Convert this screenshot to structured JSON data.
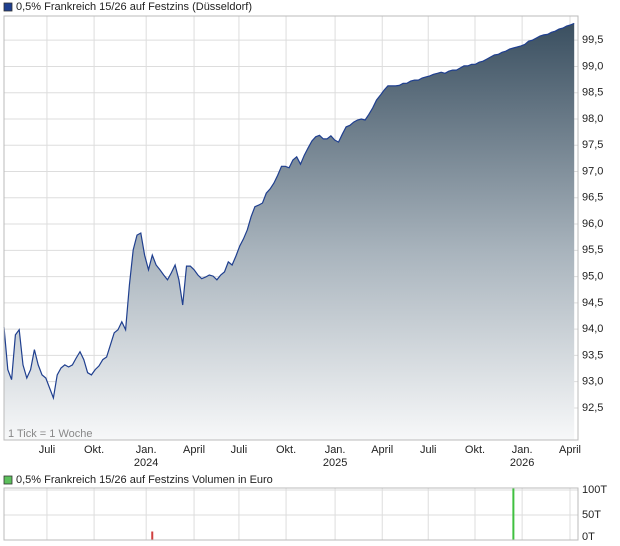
{
  "chart_data": [
    {
      "type": "area",
      "series": [
        {
          "name": "0,5% Frankreich 15/26 auf Festzins (Düsseldorf)",
          "color": "#1f3f8f",
          "values": [
            94.04,
            93.23,
            93.04,
            93.89,
            93.99,
            93.32,
            93.07,
            93.23,
            93.61,
            93.32,
            93.13,
            93.07,
            92.88,
            92.69,
            93.13,
            93.26,
            93.32,
            93.28,
            93.32,
            93.45,
            93.57,
            93.42,
            93.17,
            93.13,
            93.23,
            93.3,
            93.42,
            93.47,
            93.7,
            93.93,
            93.99,
            94.14,
            93.99,
            94.84,
            95.51,
            95.79,
            95.83,
            95.41,
            95.13,
            95.41,
            95.22,
            95.13,
            95.03,
            94.94,
            95.07,
            95.22,
            94.94,
            94.46,
            95.2,
            95.2,
            95.13,
            95.03,
            94.96,
            94.99,
            95.03,
            95.01,
            94.94,
            95.03,
            95.09,
            95.28,
            95.22,
            95.39,
            95.58,
            95.72,
            95.89,
            96.14,
            96.33,
            96.36,
            96.4,
            96.59,
            96.67,
            96.78,
            96.93,
            97.1,
            97.1,
            97.07,
            97.22,
            97.28,
            97.14,
            97.31,
            97.45,
            97.58,
            97.66,
            97.69,
            97.62,
            97.62,
            97.68,
            97.6,
            97.56,
            97.71,
            97.85,
            97.88,
            97.94,
            97.98,
            98.0,
            97.98,
            98.09,
            98.21,
            98.36,
            98.45,
            98.55,
            98.63,
            98.63,
            98.63,
            98.64,
            98.68,
            98.68,
            98.72,
            98.74,
            98.74,
            98.78,
            98.8,
            98.82,
            98.85,
            98.87,
            98.89,
            98.87,
            98.91,
            98.93,
            98.93,
            98.97,
            99.01,
            99.01,
            99.04,
            99.04,
            99.08,
            99.1,
            99.14,
            99.18,
            99.22,
            99.23,
            99.27,
            99.29,
            99.33,
            99.35,
            99.37,
            99.39,
            99.42,
            99.48,
            99.5,
            99.54,
            99.58,
            99.6,
            99.61,
            99.65,
            99.67,
            99.71,
            99.73,
            99.77,
            99.79,
            99.82
          ]
        }
      ],
      "note": "1 Tick = 1 Woche",
      "xlim": [
        0,
        151
      ],
      "xticks": [
        {
          "value": 11.3,
          "label": "Juli"
        },
        {
          "value": 23.7,
          "label": "Okt."
        },
        {
          "value": 37.4,
          "label": "Jan.",
          "year": "2024"
        },
        {
          "value": 50,
          "label": "April"
        },
        {
          "value": 61.8,
          "label": "Juli"
        },
        {
          "value": 74.2,
          "label": "Okt."
        },
        {
          "value": 87.1,
          "label": "Jan.",
          "year": "2025"
        },
        {
          "value": 99.5,
          "label": "April"
        },
        {
          "value": 111.6,
          "label": "Juli"
        },
        {
          "value": 123.9,
          "label": "Okt."
        },
        {
          "value": 136.3,
          "label": "Jan.",
          "year": "2026"
        },
        {
          "value": 148.9,
          "label": "April"
        }
      ],
      "ylim": [
        91.89,
        99.96
      ],
      "yticks": [
        {
          "value": 92.5,
          "label": "92,5"
        },
        {
          "value": 93,
          "label": "93,0"
        },
        {
          "value": 93.5,
          "label": "93,5"
        },
        {
          "value": 94,
          "label": "94,0"
        },
        {
          "value": 94.5,
          "label": "94,5"
        },
        {
          "value": 95,
          "label": "95,0"
        },
        {
          "value": 95.5,
          "label": "95,5"
        },
        {
          "value": 96,
          "label": "96,0"
        },
        {
          "value": 96.5,
          "label": "96,5"
        },
        {
          "value": 97,
          "label": "97,0"
        },
        {
          "value": 97.5,
          "label": "97,5"
        },
        {
          "value": 98,
          "label": "98,0"
        },
        {
          "value": 98.5,
          "label": "98,5"
        },
        {
          "value": 99,
          "label": "99,0"
        },
        {
          "value": 99.5,
          "label": "99,5"
        }
      ],
      "grid": true
    },
    {
      "type": "bar",
      "series": [
        {
          "name": "0,5% Frankreich 15/26 auf Festzins Volumen in Euro",
          "color": "#5cc05c"
        }
      ],
      "x": [
        39,
        134
      ],
      "values": [
        17000,
        104000
      ],
      "colors": [
        "#d04040",
        "#40c040"
      ],
      "xlim": [
        0,
        151
      ],
      "ylim": [
        0,
        104000
      ],
      "yticks": [
        {
          "value": 0,
          "label": "0T"
        },
        {
          "value": 50000,
          "label": "50T"
        },
        {
          "value": 100000,
          "label": "100T"
        }
      ],
      "grid": true
    }
  ]
}
